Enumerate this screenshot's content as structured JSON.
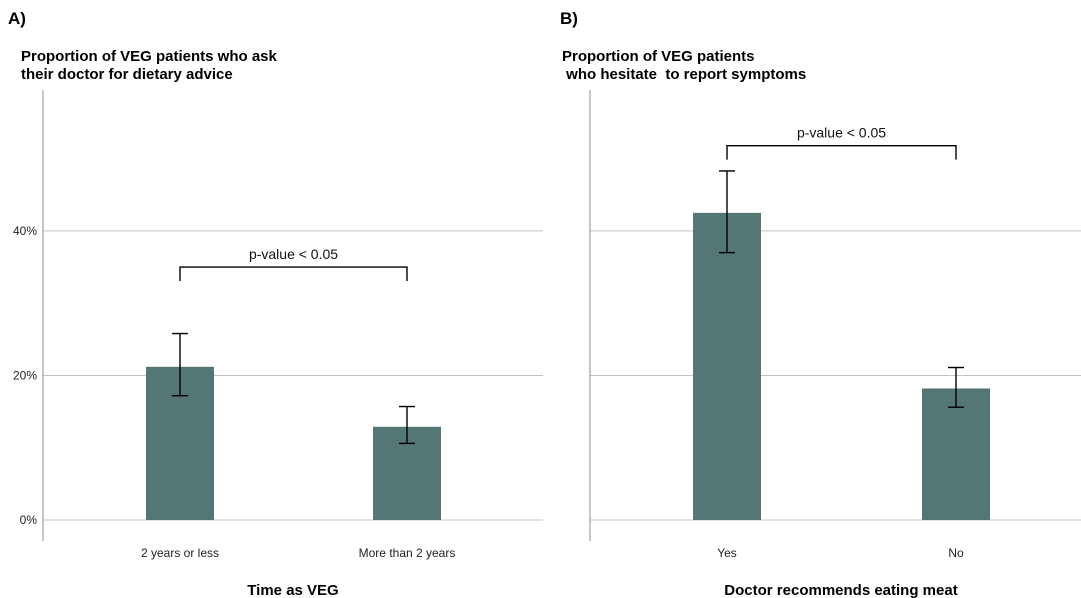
{
  "colors": {
    "bar": "#547776",
    "grid": "#c4c4c4",
    "axis": "#8c8c8c"
  },
  "chart_data": [
    {
      "type": "bar",
      "panel_label": "A)",
      "title": [
        "Proportion of VEG patients who ask",
        "their doctor for dietary advice"
      ],
      "xlabel": "Time as VEG",
      "ylabel": "",
      "categories": [
        "2 years or less",
        "More than 2 years"
      ],
      "values": [
        21.2,
        12.9
      ],
      "error_low": [
        17.2,
        10.6
      ],
      "error_high": [
        25.8,
        15.7
      ],
      "ylim": [
        0,
        59.5
      ],
      "yticks": [
        0,
        20,
        40
      ],
      "ytick_labels": [
        "0%",
        "20%",
        "40%"
      ],
      "grid": true,
      "annotation": {
        "text": "p-value < 0.05",
        "y": 35.0
      }
    },
    {
      "type": "bar",
      "panel_label": "B)",
      "title": [
        "Proportion of VEG patients",
        " who hesitate  to report symptoms"
      ],
      "xlabel": "Doctor recommends eating meat",
      "ylabel": "",
      "categories": [
        "Yes",
        "No"
      ],
      "values": [
        42.5,
        18.2
      ],
      "error_low": [
        37.0,
        15.6
      ],
      "error_high": [
        48.3,
        21.1
      ],
      "ylim": [
        0,
        59.5
      ],
      "yticks": [
        0,
        20,
        40
      ],
      "ytick_labels": [
        "",
        "",
        ""
      ],
      "grid": true,
      "annotation": {
        "text": "p-value < 0.05",
        "y": 51.8
      }
    }
  ]
}
